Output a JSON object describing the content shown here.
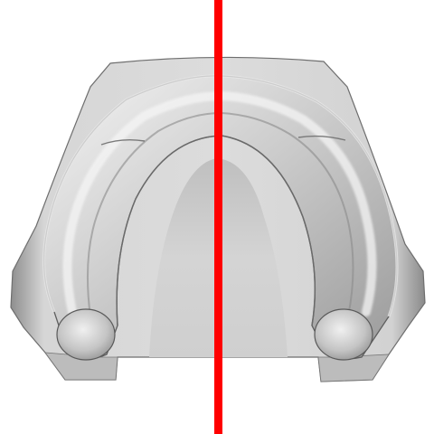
{
  "scene": {
    "subject": "dental-arch-model-scan",
    "background_color": "#ffffff",
    "base_color": "#cfcfcf",
    "ridge_color": "#bdbdbd",
    "highlight_color": "#f2f2f2",
    "shadow_color": "#7a7a7a",
    "marker_color": "#ff0000",
    "marker_orientation": "vertical"
  }
}
